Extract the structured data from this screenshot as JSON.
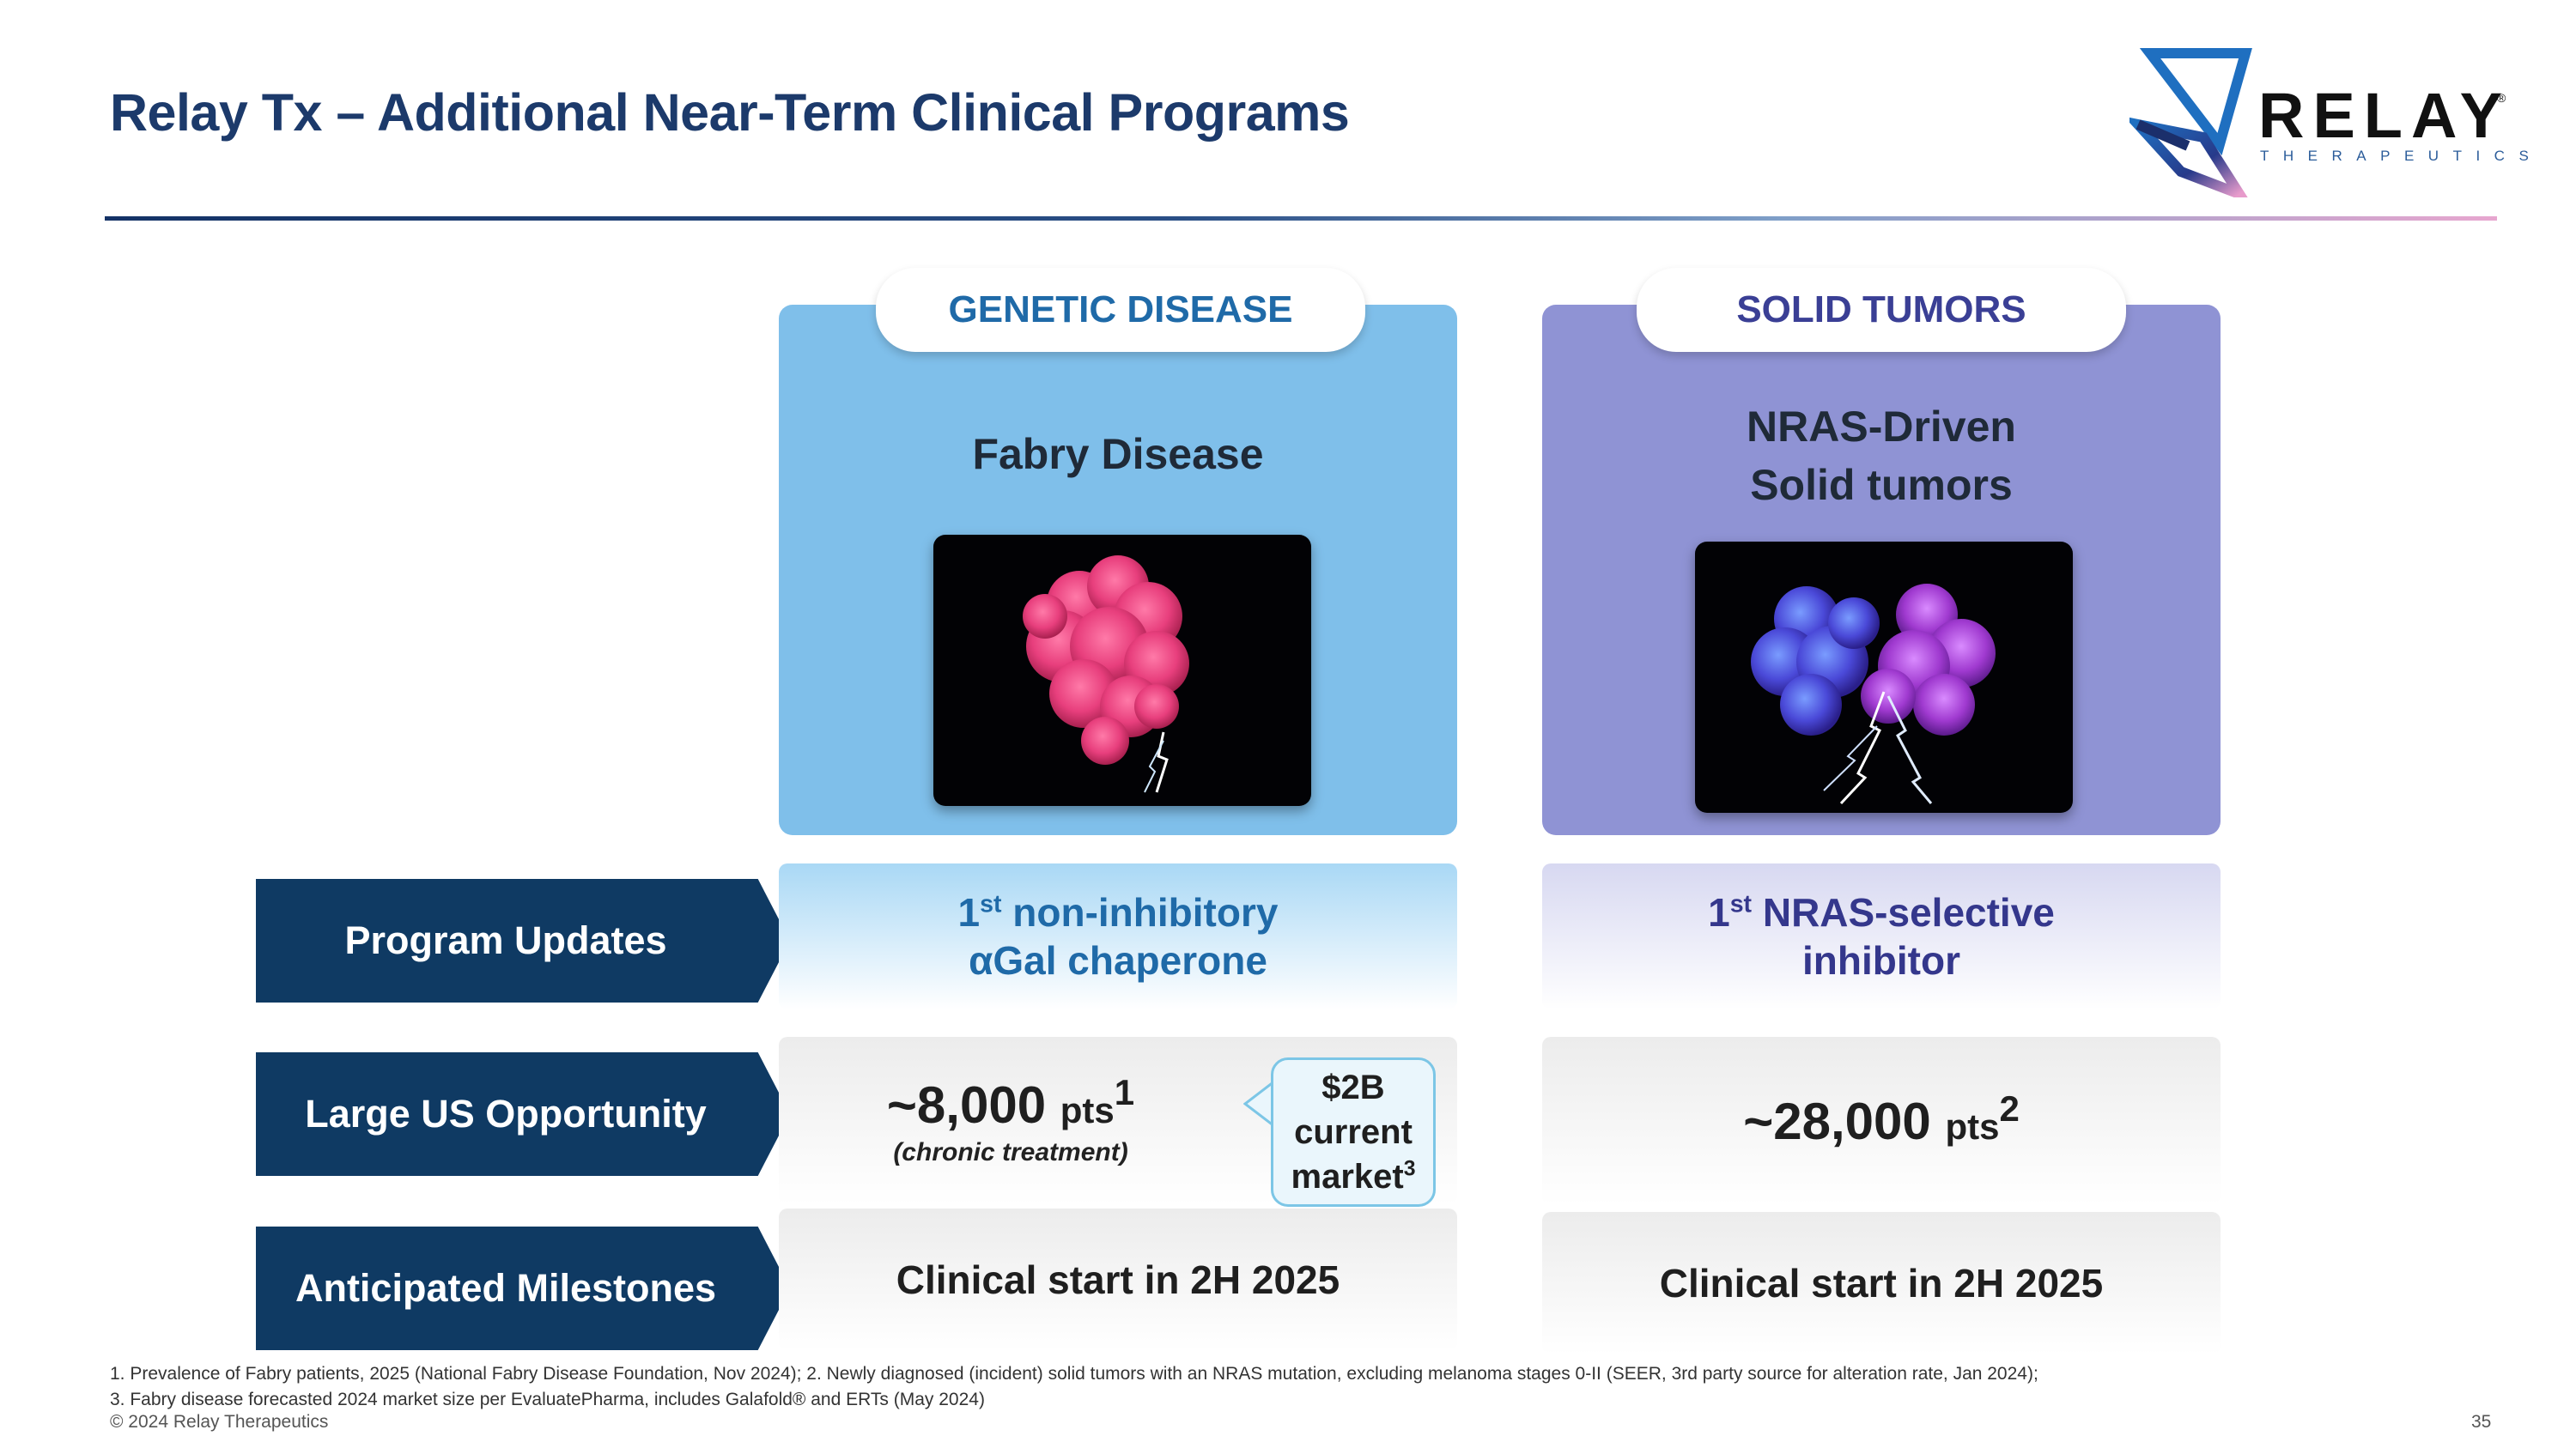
{
  "header": {
    "title": "Relay Tx – Additional Near-Term Clinical Programs"
  },
  "logo": {
    "word": "RELAY",
    "reg": "®",
    "sub": "THERAPEUTICS"
  },
  "columns": [
    {
      "tab": "GENETIC DISEASE",
      "disease": "Fabry Disease",
      "image_icon": "pink-protein-with-lightning-icon",
      "update_line1": "non-inhibitory",
      "update_prefix": "1",
      "update_sup": "st",
      "update_line2": "αGal chaperone",
      "opportunity_value": "~8,000",
      "opportunity_unit": "pts",
      "opportunity_sup": "1",
      "opportunity_note": "(chronic treatment)",
      "milestone": "Clinical start in 2H 2025"
    },
    {
      "tab": "SOLID TUMORS",
      "disease_line1": "NRAS-Driven",
      "disease_line2": "Solid tumors",
      "image_icon": "blue-purple-protein-with-lightning-icon",
      "update_prefix": "1",
      "update_sup": "st",
      "update_line1": "NRAS-selective",
      "update_line2": "inhibitor",
      "opportunity_value": "~28,000",
      "opportunity_unit": "pts",
      "opportunity_sup": "2",
      "milestone": "Clinical start in 2H 2025"
    }
  ],
  "rows": {
    "program_updates": "Program Updates",
    "large_us_opportunity": "Large US Opportunity",
    "anticipated_milestones": "Anticipated Milestones"
  },
  "callout": {
    "line1": "$2B",
    "line2": "current",
    "line3": "market",
    "sup": "3"
  },
  "footer": {
    "footnote1": "1. Prevalence of Fabry patients, 2025 (National Fabry Disease Foundation, Nov 2024); 2. Newly diagnosed (incident) solid tumors with an NRAS mutation, excluding melanoma stages 0-II (SEER, 3rd party source for alteration rate, Jan 2024);",
    "footnote2": "3. Fabry disease forecasted 2024 market size per EvaluatePharma, includes Galafold® and ERTs (May 2024)",
    "copyright": "© 2024 Relay Therapeutics",
    "page_number": "35"
  },
  "colors": {
    "title": "#1c3a6b",
    "genetic_panel": "#7fbfea",
    "solid_panel": "#8f93d4",
    "row_label": "#0f3a63"
  }
}
